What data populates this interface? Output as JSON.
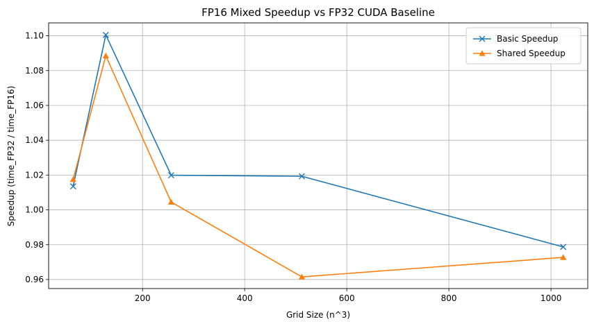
{
  "chart_data": {
    "type": "line",
    "title": "FP16 Mixed Speedup vs FP32 CUDA Baseline",
    "xlabel": "Grid Size (n^3)",
    "ylabel": "Speedup (time_FP32 / time_FP16)",
    "xlim": [
      16,
      1072
    ],
    "ylim": [
      0.9548,
      1.1074
    ],
    "xticks": [
      200,
      400,
      600,
      800,
      1000
    ],
    "yticks": [
      0.96,
      0.98,
      1.0,
      1.02,
      1.04,
      1.06,
      1.08,
      1.1
    ],
    "grid": true,
    "legend_position": "top-right",
    "x": [
      64,
      128,
      256,
      512,
      1024
    ],
    "series": [
      {
        "name": "Basic Speedup",
        "marker": "x",
        "color": "#1f77b4",
        "values": [
          1.0135,
          1.1005,
          1.0199,
          1.0193,
          0.9787
        ]
      },
      {
        "name": "Shared Speedup",
        "marker": "triangle",
        "color": "#ff7f0e",
        "values": [
          1.0175,
          1.0885,
          1.0045,
          0.9615,
          0.9727
        ]
      }
    ]
  }
}
